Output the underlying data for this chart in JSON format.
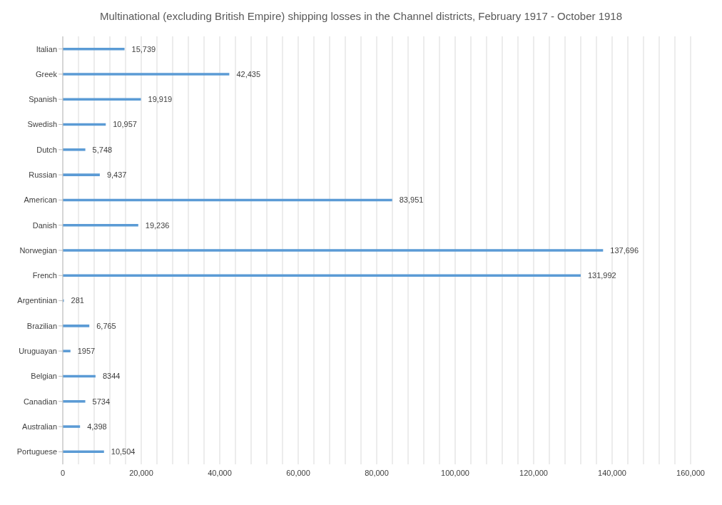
{
  "chart_data": {
    "type": "bar",
    "orientation": "horizontal",
    "title": "Multinational (excluding British Empire) shipping losses in the Channel districts, February 1917 - October 1918",
    "categories": [
      "Italian",
      "Greek",
      "Spanish",
      "Swedish",
      "Dutch",
      "Russian",
      "American",
      "Danish",
      "Norwegian",
      "French",
      "Argentinian",
      "Brazilian",
      "Uruguayan",
      "Belgian",
      "Canadian",
      "Australian",
      "Portuguese"
    ],
    "values": [
      15739,
      42435,
      19919,
      10957,
      5748,
      9437,
      83951,
      19236,
      137696,
      131992,
      281,
      6765,
      1957,
      8344,
      5734,
      4398,
      10504
    ],
    "value_labels": [
      "15,739",
      "42,435",
      "19,919",
      "10,957",
      "5,748",
      "9,437",
      "83,951",
      "19,236",
      "137,696",
      "131,992",
      "281",
      "6,765",
      "1957",
      "8344",
      "5734",
      "4,398",
      "10,504"
    ],
    "color": "#5b9bd5",
    "xlim": [
      0,
      160000
    ],
    "xticks": [
      0,
      {
        "value": 4000,
        "label": null
      },
      {
        "value": 8000,
        "label": null
      },
      {
        "value": 12000,
        "label": null
      },
      {
        "value": 16000,
        "label": null
      },
      {
        "value": 20000,
        "label": "20,000"
      },
      {
        "value": 24000,
        "label": null
      },
      {
        "value": 28000,
        "label": null
      },
      {
        "value": 32000,
        "label": null
      },
      {
        "value": 36000,
        "label": null
      },
      {
        "value": 40000,
        "label": "40,000"
      },
      {
        "value": 44000,
        "label": null
      },
      {
        "value": 48000,
        "label": null
      },
      {
        "value": 52000,
        "label": null
      },
      {
        "value": 56000,
        "label": null
      },
      {
        "value": 60000,
        "label": "60,000"
      },
      {
        "value": 64000,
        "label": null
      },
      {
        "value": 68000,
        "label": null
      },
      {
        "value": 72000,
        "label": null
      },
      {
        "value": 76000,
        "label": null
      },
      {
        "value": 80000,
        "label": "80,000"
      },
      {
        "value": 84000,
        "label": null
      },
      {
        "value": 88000,
        "label": null
      },
      {
        "value": 92000,
        "label": null
      },
      {
        "value": 96000,
        "label": null
      },
      {
        "value": 100000,
        "label": "100,000"
      },
      {
        "value": 104000,
        "label": null
      },
      {
        "value": 108000,
        "label": null
      },
      {
        "value": 112000,
        "label": null
      },
      {
        "value": 116000,
        "label": null
      },
      {
        "value": 120000,
        "label": "120,000"
      },
      {
        "value": 124000,
        "label": null
      },
      {
        "value": 128000,
        "label": null
      },
      {
        "value": 132000,
        "label": null
      },
      {
        "value": 136000,
        "label": null
      },
      {
        "value": 140000,
        "label": "140,000"
      },
      {
        "value": 144000,
        "label": null
      },
      {
        "value": 148000,
        "label": null
      },
      {
        "value": 152000,
        "label": null
      },
      {
        "value": 156000,
        "label": null
      },
      {
        "value": 160000,
        "label": "160,000"
      }
    ],
    "grid": "x"
  }
}
